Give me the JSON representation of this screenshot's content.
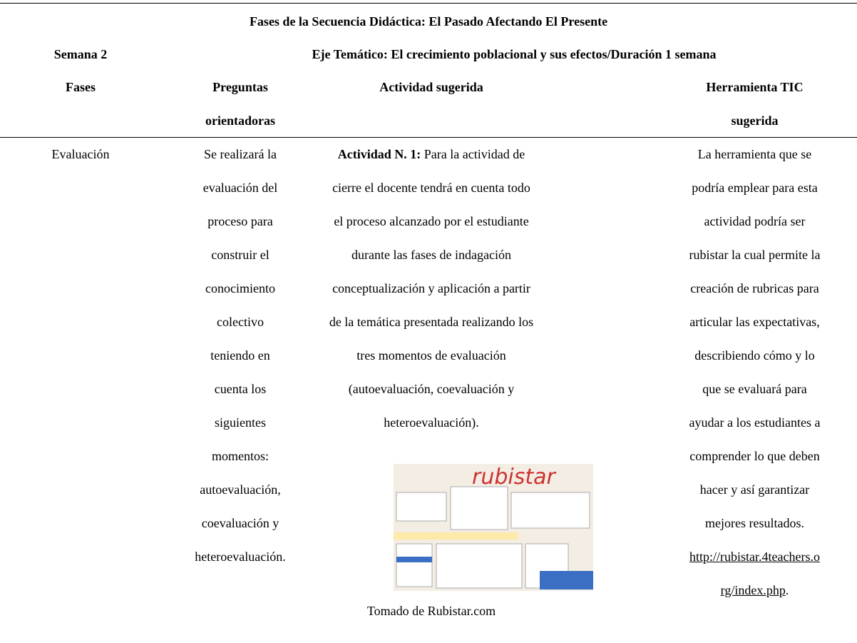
{
  "table": {
    "title": "Fases de la Secuencia Didáctica: El Pasado Afectando El Presente",
    "week": "Semana 2",
    "axis": "Eje Temático: El crecimiento poblacional y sus efectos/Duración 1 semana",
    "headers": [
      [
        "Fases"
      ],
      [
        "Preguntas",
        "orientadoras"
      ],
      [
        "Actividad sugerida"
      ],
      [
        "Herramienta TIC",
        "sugerida"
      ]
    ],
    "row": {
      "phase": "Evaluación",
      "questions": [
        "Se realizará la",
        "evaluación del",
        "proceso para",
        "construir el",
        "conocimiento",
        "colectivo",
        "teniendo en",
        "cuenta los",
        "siguientes",
        "momentos:",
        "autoevaluación,",
        "coevaluación y",
        "heteroevaluación."
      ],
      "activity_label": "Actividad N. 1:",
      "activity": [
        "Para la actividad de",
        "cierre el docente tendrá en cuenta todo",
        "el proceso alcanzado por el estudiante",
        "durante las fases de indagación",
        "conceptualización y aplicación a partir",
        "de la temática presentada realizando los",
        "tres momentos de evaluación",
        "(autoevaluación, coevaluación y",
        "heteroevaluación)."
      ],
      "image_caption": "Tomado de Rubistar.com",
      "tool": [
        "La herramienta que se",
        "podría emplear para esta",
        "actividad podría ser",
        "rubistar la cual permite la",
        "creación de rubricas para",
        "articular las expectativas,",
        "describiendo cómo y lo",
        "que se evaluará para",
        "ayudar a los estudiantes a",
        "comprender lo que deben",
        "hacer y así garantizar",
        "mejores resultados."
      ],
      "link": [
        "http://rubistar.4teachers.o",
        "rg/index.php"
      ],
      "link_end": "."
    }
  }
}
